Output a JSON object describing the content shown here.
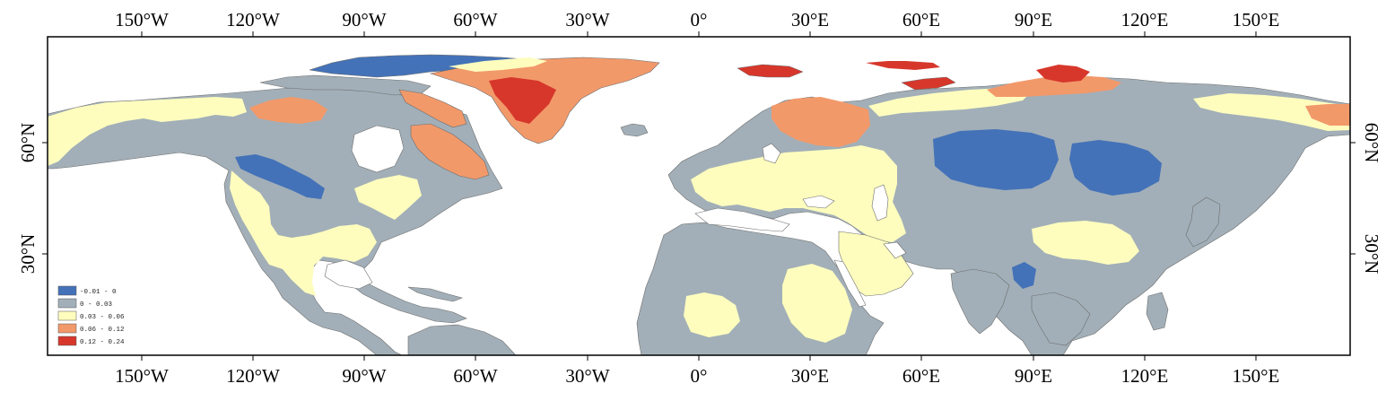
{
  "map": {
    "palette": {
      "ocean": "#ffffff",
      "class_1": "#4472b8",
      "class_2": "#a2afb8",
      "class_3": "#fefdbe",
      "class_4": "#f2996a",
      "class_5": "#d7372b",
      "coast": "#6d6d6d",
      "frame": "#000000"
    },
    "top_lon_labels": [
      "150°W",
      "120°W",
      "90°W",
      "60°W",
      "30°W",
      "0°",
      "30°E",
      "60°E",
      "90°E",
      "120°E",
      "150°E"
    ],
    "bottom_lon_labels": [
      "150°W",
      "120°W",
      "90°W",
      "60°W",
      "30°W",
      "0°",
      "30°E",
      "60°E",
      "90°E",
      "120°E",
      "150°E"
    ],
    "left_lat_labels": [
      "60°N",
      "30°N"
    ],
    "right_lat_labels": [
      "60°N",
      "30°N"
    ]
  },
  "legend": {
    "items": [
      {
        "label": "-0.01 - 0",
        "color": "#4472b8"
      },
      {
        "label": "0 - 0.03",
        "color": "#a2afb8"
      },
      {
        "label": "0.03 - 0.06",
        "color": "#fefdbe"
      },
      {
        "label": "0.06 - 0.12",
        "color": "#f2996a"
      },
      {
        "label": "0.12 - 0.24",
        "color": "#d7372b"
      }
    ]
  }
}
